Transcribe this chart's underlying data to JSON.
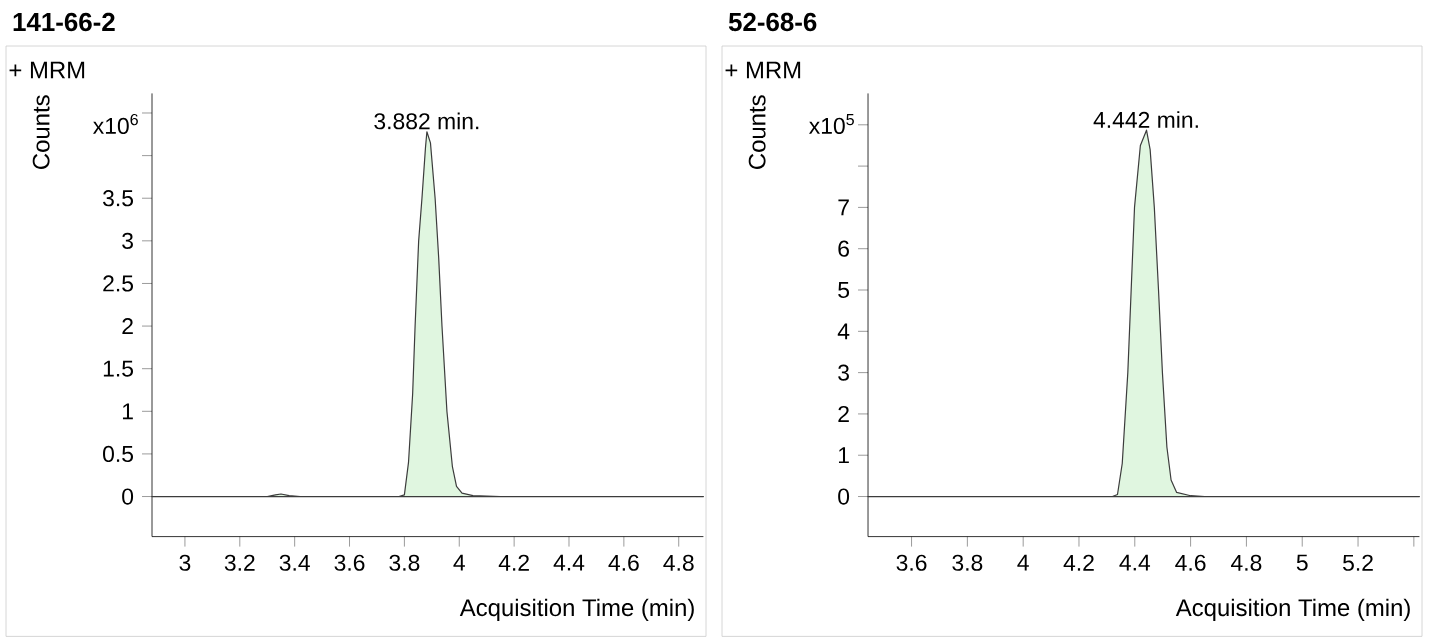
{
  "chart_data": [
    {
      "type": "area",
      "title": "141-66-2",
      "xlabel": "Acquisition Time (min)",
      "ylabel": "Counts",
      "annotations": [
        "+ MRM",
        "x10$^{6}$",
        {
          "text": "3.882 min.",
          "x": 3.882,
          "y": 4.28
        }
      ],
      "x": [
        2.88,
        3.3,
        3.33,
        3.35,
        3.38,
        3.42,
        3.78,
        3.8,
        3.815,
        3.83,
        3.839,
        3.852,
        3.864,
        3.877,
        3.882,
        3.895,
        3.912,
        3.925,
        3.937,
        3.955,
        3.975,
        3.99,
        4.01,
        4.05,
        4.15,
        4.89
      ],
      "values": [
        0,
        0,
        0.02,
        0.03,
        0.01,
        0,
        0,
        0.02,
        0.4,
        1.2,
        2.0,
        3.0,
        3.5,
        4.1,
        4.28,
        4.15,
        3.5,
        2.8,
        2.0,
        1.0,
        0.35,
        0.12,
        0.04,
        0.01,
        0,
        0
      ],
      "color": "#e0f6e0",
      "xlim": [
        2.88,
        4.89
      ],
      "ylim": [
        -0.47,
        4.73
      ],
      "xticks": [
        3,
        3.2,
        3.4,
        3.6,
        3.8,
        4,
        4.2,
        4.4,
        4.6,
        4.8
      ],
      "yticks": [
        0,
        0.5,
        1,
        1.5,
        2,
        2.5,
        3,
        3.5,
        {
          "value": 4,
          "label": null
        },
        {
          "value": 4.5,
          "label": null
        }
      ]
    },
    {
      "type": "area",
      "title": "52-68-6",
      "xlabel": "Acquisition Time (min)",
      "ylabel": "Counts",
      "annotations": [
        "+ MRM",
        "x10$^{5}$",
        {
          "text": "4.442 min.",
          "x": 4.442,
          "y": 8.87
        }
      ],
      "x": [
        3.444,
        4.32,
        4.338,
        4.355,
        4.375,
        4.387,
        4.399,
        4.42,
        4.442,
        4.455,
        4.47,
        4.485,
        4.499,
        4.515,
        4.53,
        4.55,
        4.6,
        4.65,
        5.42
      ],
      "values": [
        0,
        0,
        0.05,
        0.8,
        3.0,
        5.0,
        7.0,
        8.5,
        8.87,
        8.4,
        7.0,
        5.0,
        3.0,
        1.2,
        0.4,
        0.1,
        0.02,
        0,
        0
      ],
      "color": "#e0f6e0",
      "xlim": [
        3.444,
        5.42
      ],
      "ylim": [
        -0.97,
        9.76
      ],
      "xticks": [
        3.6,
        3.8,
        4,
        4.2,
        4.4,
        4.6,
        4.8,
        5,
        5.2,
        {
          "value": 5.4,
          "label": null
        }
      ],
      "yticks": [
        0,
        1,
        2,
        3,
        4,
        5,
        6,
        7,
        {
          "value": 8,
          "label": null
        },
        {
          "value": 9,
          "label": null
        }
      ]
    }
  ]
}
